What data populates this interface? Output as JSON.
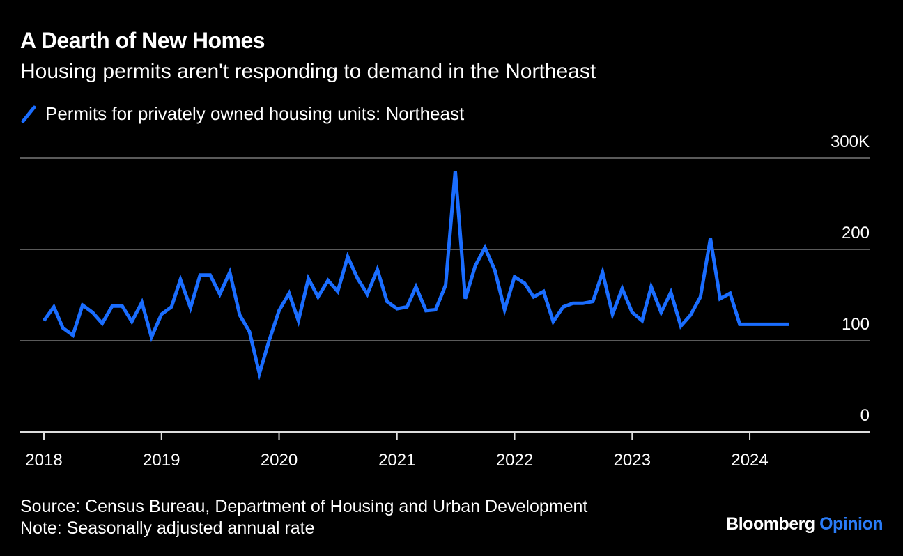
{
  "header": {
    "title": "A Dearth of New Homes",
    "subtitle": "Housing permits aren't responding to demand in the Northeast"
  },
  "legend": {
    "label": "Permits for privately owned housing units: Northeast",
    "icon": "line-swatch-icon"
  },
  "footer": {
    "source": "Source: Census Bureau, Department of Housing and Urban Development",
    "note": "Note: Seasonally adjusted annual rate",
    "brand_main": "Bloomberg",
    "brand_accent": "Opinion"
  },
  "colors": {
    "background": "#000000",
    "line": "#1a6dff",
    "grid": "#5a5a5a",
    "text": "#ffffff",
    "brand_accent": "#2a7cf8"
  },
  "chart_data": {
    "type": "line",
    "x_axis_type": "date",
    "series": [
      {
        "name": "Permits for privately owned housing units: Northeast",
        "x": [
          "2018-01",
          "2018-02",
          "2018-03",
          "2018-04",
          "2018-05",
          "2018-06",
          "2018-07",
          "2018-08",
          "2018-09",
          "2018-10",
          "2018-11",
          "2018-12",
          "2019-01",
          "2019-02",
          "2019-03",
          "2019-04",
          "2019-05",
          "2019-06",
          "2019-07",
          "2019-08",
          "2019-09",
          "2019-10",
          "2019-11",
          "2019-12",
          "2020-01",
          "2020-02",
          "2020-03",
          "2020-04",
          "2020-05",
          "2020-06",
          "2020-07",
          "2020-08",
          "2020-09",
          "2020-10",
          "2020-11",
          "2020-12",
          "2021-01",
          "2021-02",
          "2021-03",
          "2021-04",
          "2021-05",
          "2021-06",
          "2021-07",
          "2021-08",
          "2021-09",
          "2021-10",
          "2021-11",
          "2021-12",
          "2022-01",
          "2022-02",
          "2022-03",
          "2022-04",
          "2022-05",
          "2022-06",
          "2022-07",
          "2022-08",
          "2022-09",
          "2022-10",
          "2022-11",
          "2022-12",
          "2023-01",
          "2023-02",
          "2023-03",
          "2023-04",
          "2023-05",
          "2023-06",
          "2023-07",
          "2023-08",
          "2023-09",
          "2023-10",
          "2023-11",
          "2023-12",
          "2024-01",
          "2024-02",
          "2024-03",
          "2024-04",
          "2024-05"
        ],
        "values": [
          122,
          137,
          114,
          106,
          139,
          131,
          119,
          138,
          138,
          121,
          142,
          104,
          129,
          137,
          167,
          136,
          172,
          172,
          151,
          175,
          128,
          110,
          64,
          100,
          133,
          152,
          122,
          168,
          148,
          166,
          154,
          192,
          168,
          151,
          178,
          143,
          135,
          137,
          159,
          133,
          134,
          161,
          286,
          146,
          182,
          202,
          177,
          134,
          170,
          163,
          148,
          154,
          121,
          137,
          141,
          141,
          143,
          175,
          129,
          157,
          131,
          122,
          159,
          131,
          153,
          116,
          128,
          148,
          212,
          146,
          152,
          118,
          118,
          118,
          118,
          118,
          118
        ],
        "values_note": ""
      }
    ],
    "x_tick_labels": [
      "2018",
      "2019",
      "2020",
      "2021",
      "2022",
      "2023",
      "2024"
    ],
    "y_tick_labels": [
      "300K",
      "200",
      "100",
      "0"
    ],
    "ylim": [
      0,
      300
    ],
    "grid": true,
    "legend_position": "top-left",
    "title": "A Dearth of New Homes",
    "subtitle": "Housing permits aren't responding to demand in the Northeast",
    "xlabel": "",
    "ylabel": ""
  }
}
